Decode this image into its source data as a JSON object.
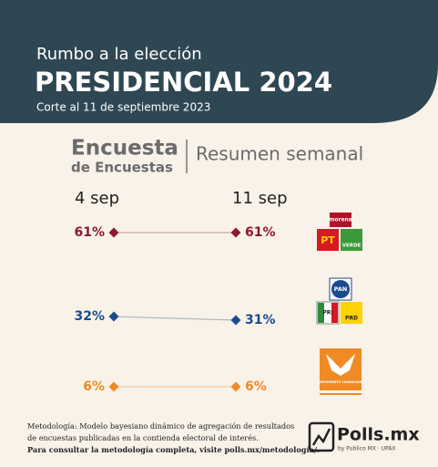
{
  "header": {
    "kicker": "Rumbo a la elección",
    "title": "PRESIDENCIAL 2024",
    "cutoff": "Corte al 11 de septiembre 2023"
  },
  "chart_data": {
    "type": "slope",
    "title_lines": [
      "Encuesta",
      "de Encuestas"
    ],
    "subtitle": "Resumen semanal",
    "categories": [
      "4 sep",
      "11 sep"
    ],
    "series": [
      {
        "color": "#8b1a2b",
        "values": [
          61,
          61
        ],
        "value_labels": [
          "61%",
          "61%"
        ],
        "logo": [
          "morena",
          "PT",
          "VERDE"
        ]
      },
      {
        "color": "#1b4a8f",
        "values": [
          32,
          31
        ],
        "value_labels": [
          "32%",
          "31%"
        ],
        "logo": [
          "PAN",
          "PRI",
          "PRD"
        ]
      },
      {
        "color": "#f08a24",
        "values": [
          6,
          6
        ],
        "value_labels": [
          "6%",
          "6%"
        ],
        "logo": [
          "MOVIMIENTO CIUDADANO"
        ]
      }
    ]
  },
  "footer": {
    "lines": [
      "Metodología: Modelo bayesiano dinámico de agregación de resultados",
      "de encuestas publicadas en la contienda electoral de interés.",
      "Para consultar la metodología completa, visite polls.mx/metodología/."
    ],
    "brand": "Polls.mx",
    "brand_sub": "by Publico MX · UPAX"
  }
}
